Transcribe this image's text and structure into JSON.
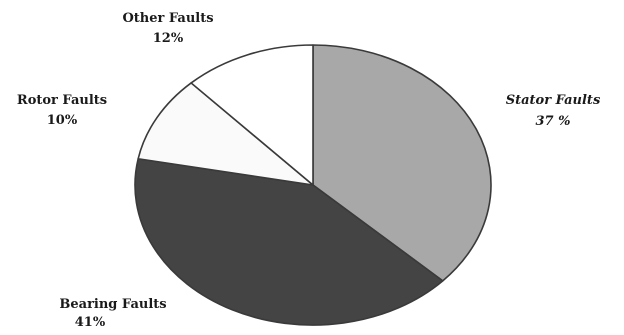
{
  "chart_data": {
    "type": "pie",
    "title": "",
    "slices": [
      {
        "label": "Stator Faults",
        "value_label": "37 %",
        "value": 37,
        "color": "#a8a8a8"
      },
      {
        "label": "Bearing Faults",
        "value_label": "41%",
        "value": 41,
        "color": "#444444"
      },
      {
        "label": "Rotor Faults",
        "value_label": "10%",
        "value": 10,
        "color": "#fafafa"
      },
      {
        "label": "Other Faults",
        "value_label": "12%",
        "value": 12,
        "color": "#ffffff"
      }
    ],
    "legend": "none"
  }
}
